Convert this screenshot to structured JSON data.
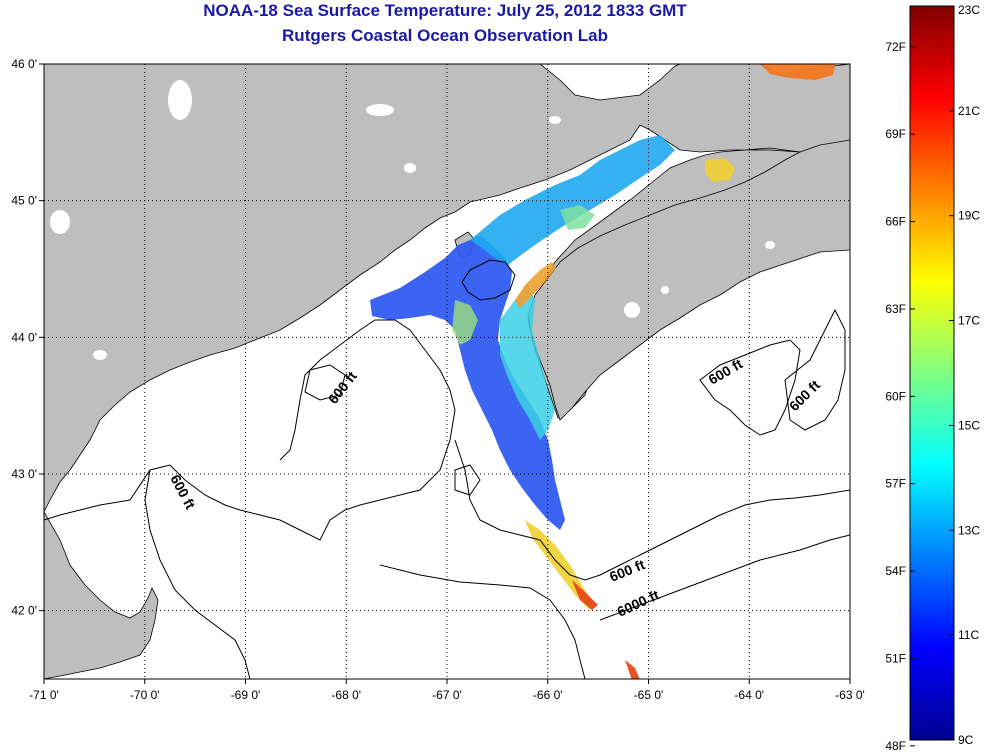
{
  "title": "NOAA-18 Sea Surface Temperature:  July 25, 2012 1833 GMT",
  "subtitle": "Rutgers Coastal Ocean Observation Lab",
  "map": {
    "lon_range": [
      -71,
      -63
    ],
    "lat_range": [
      41.5,
      46
    ],
    "lon_ticks": [
      {
        "value": -71,
        "label": "-71 0'"
      },
      {
        "value": -70,
        "label": "-70 0'"
      },
      {
        "value": -69,
        "label": "-69 0'"
      },
      {
        "value": -68,
        "label": "-68 0'"
      },
      {
        "value": -67,
        "label": "-67 0'"
      },
      {
        "value": -66,
        "label": "-66 0'"
      },
      {
        "value": -65,
        "label": "-65 0'"
      },
      {
        "value": -64,
        "label": "-64 0'"
      },
      {
        "value": -63,
        "label": "-63 0'"
      }
    ],
    "lat_ticks": [
      {
        "value": 46,
        "label": "46 0'"
      },
      {
        "value": 45,
        "label": "45 0'"
      },
      {
        "value": 44,
        "label": "44 0'"
      },
      {
        "value": 43,
        "label": "43 0'"
      },
      {
        "value": 42,
        "label": "42 0'"
      }
    ],
    "grid": "dotted",
    "land_color": "#bebebe",
    "ocean_color": "#ffffff",
    "contour_labels": [
      "600 ft",
      "600 ft",
      "600 ft",
      "600 ft",
      "600 ft",
      "6000 ft"
    ]
  },
  "colorbar": {
    "min_c": 9,
    "max_c": 23,
    "celsius_labels": [
      {
        "value": 23,
        "label": "23C"
      },
      {
        "value": 21,
        "label": "21C"
      },
      {
        "value": 19,
        "label": "19C"
      },
      {
        "value": 17,
        "label": "17C"
      },
      {
        "value": 15,
        "label": "15C"
      },
      {
        "value": 13,
        "label": "13C"
      },
      {
        "value": 11,
        "label": "11C"
      },
      {
        "value": 9,
        "label": "9C"
      }
    ],
    "fahrenheit_labels": [
      {
        "value": 72,
        "label": "72F"
      },
      {
        "value": 69,
        "label": "69F"
      },
      {
        "value": 66,
        "label": "66F"
      },
      {
        "value": 63,
        "label": "63F"
      },
      {
        "value": 60,
        "label": "60F"
      },
      {
        "value": 57,
        "label": "57F"
      },
      {
        "value": 54,
        "label": "54F"
      },
      {
        "value": 51,
        "label": "51F"
      },
      {
        "value": 48,
        "label": "48F"
      }
    ],
    "colors": [
      "#00008f",
      "#0000ff",
      "#0080ff",
      "#00ffff",
      "#80ff80",
      "#ffff00",
      "#ff8000",
      "#ff0000",
      "#800000"
    ]
  }
}
